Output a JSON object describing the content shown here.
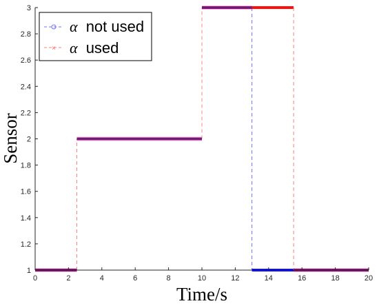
{
  "chart_data": {
    "type": "line",
    "title": "",
    "xlabel": "Time/s",
    "ylabel": "Sensor",
    "xlim": [
      0,
      20
    ],
    "ylim": [
      1,
      3
    ],
    "xticks": [
      0,
      2,
      4,
      6,
      8,
      10,
      12,
      14,
      16,
      18,
      20
    ],
    "yticks": [
      1,
      1.2,
      1.4,
      1.6,
      1.8,
      2,
      2.2,
      2.4,
      2.6,
      2.8,
      3
    ],
    "grid": false,
    "legend_position": "top-left",
    "series": [
      {
        "name": "α not used",
        "legend_text": "not used",
        "color": "#0000ff",
        "style": "dashed-circle",
        "step_points": [
          [
            0,
            1
          ],
          [
            2.5,
            1
          ],
          [
            2.5,
            2
          ],
          [
            10,
            2
          ],
          [
            10,
            3
          ],
          [
            13,
            3
          ],
          [
            13,
            1
          ],
          [
            20,
            1
          ]
        ]
      },
      {
        "name": "α used",
        "legend_text": "used",
        "color": "#ff0000",
        "style": "dashed-x",
        "step_points": [
          [
            0,
            1
          ],
          [
            2.5,
            1
          ],
          [
            2.5,
            2
          ],
          [
            10,
            2
          ],
          [
            10,
            3
          ],
          [
            15.5,
            3
          ],
          [
            15.5,
            1
          ],
          [
            20,
            1
          ]
        ]
      }
    ]
  },
  "legend": {
    "alpha_symbol": "α"
  }
}
